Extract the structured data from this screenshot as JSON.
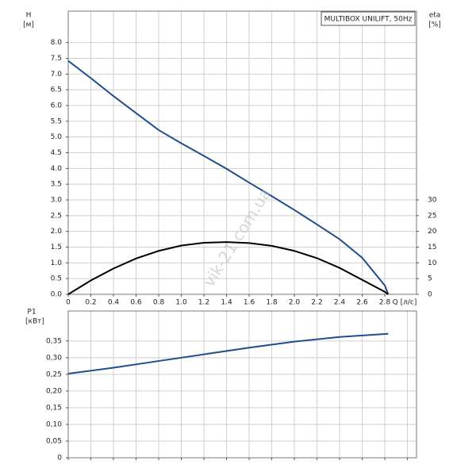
{
  "chart_data": [
    {
      "type": "line",
      "title": "MULTIBOX UNILIFT, 50Hz",
      "y_label": "H",
      "y_unit": "[м]",
      "y2_label": "eta",
      "y2_unit": "[%]",
      "x_label": "Q [л/с]",
      "watermark": "vik-21.com.ua",
      "x": [
        0,
        0.2,
        0.4,
        0.6,
        0.8,
        1.0,
        1.2,
        1.4,
        1.6,
        1.8,
        2.0,
        2.2,
        2.4,
        2.6,
        2.8,
        2.83
      ],
      "xlim": [
        0,
        3.08
      ],
      "xticks": [
        0,
        0.2,
        0.4,
        0.6,
        0.8,
        {
          "value": 1,
          "label": "1.0"
        },
        1.2,
        1.4,
        1.6,
        1.8,
        {
          "value": 2,
          "label": "2.0"
        },
        2.2,
        2.4,
        2.6,
        2.8
      ],
      "ylim": [
        0,
        9
      ],
      "yticks": [
        {
          "value": 0,
          "label": "0.0"
        },
        0.5,
        {
          "value": 1,
          "label": "1.0"
        },
        1.5,
        {
          "value": 2,
          "label": "2.0"
        },
        2.5,
        {
          "value": 3,
          "label": "3.0"
        },
        3.5,
        {
          "value": 4,
          "label": "4.0"
        },
        4.5,
        {
          "value": 5,
          "label": "5.0"
        },
        5.5,
        {
          "value": 6,
          "label": "6.0"
        },
        6.5,
        {
          "value": 7,
          "label": "7.0"
        },
        7.5,
        {
          "value": 8,
          "label": "8.0"
        }
      ],
      "y2lim": [
        0,
        90
      ],
      "y2ticks": [
        0,
        5,
        10,
        15,
        20,
        25,
        30
      ],
      "grid": true,
      "series": [
        {
          "color": "#1f4e8c",
          "values": [
            7.42,
            6.87,
            6.3,
            5.76,
            5.22,
            4.8,
            4.4,
            3.99,
            3.55,
            3.12,
            2.68,
            2.22,
            1.75,
            1.16,
            0.28,
            0
          ]
        },
        {
          "color": "#000000",
          "axis": "y2",
          "values": [
            0,
            4.4,
            8.2,
            11.4,
            13.8,
            15.5,
            16.4,
            16.6,
            16.3,
            15.4,
            13.8,
            11.5,
            8.4,
            4.6,
            0.8,
            0
          ]
        }
      ]
    },
    {
      "type": "line",
      "y_label": "P1",
      "y_unit": "[кВт]",
      "x": [
        0,
        0.4,
        0.8,
        1.2,
        1.6,
        2.0,
        2.4,
        2.8,
        2.83
      ],
      "xlim": [
        0,
        3.08
      ],
      "xticks": [
        0,
        0.2,
        0.4,
        0.6,
        0.8,
        1,
        1.2,
        1.4,
        1.6,
        1.8,
        2,
        2.2,
        2.4,
        2.6,
        2.8,
        3
      ],
      "ylim": [
        0,
        0.44
      ],
      "yticks": [
        0,
        {
          "value": 0.05,
          "label": "0,05"
        },
        {
          "value": 0.1,
          "label": "0,10"
        },
        {
          "value": 0.15,
          "label": "0,15"
        },
        {
          "value": 0.2,
          "label": "0,20"
        },
        {
          "value": 0.25,
          "label": "0,25"
        },
        {
          "value": 0.3,
          "label": "0,30"
        },
        {
          "value": 0.35,
          "label": "0,35"
        }
      ],
      "grid": true,
      "series": [
        {
          "color": "#1f4e8c",
          "values": [
            0.252,
            0.27,
            0.29,
            0.31,
            0.33,
            0.348,
            0.362,
            0.371,
            0.372
          ]
        }
      ]
    }
  ]
}
